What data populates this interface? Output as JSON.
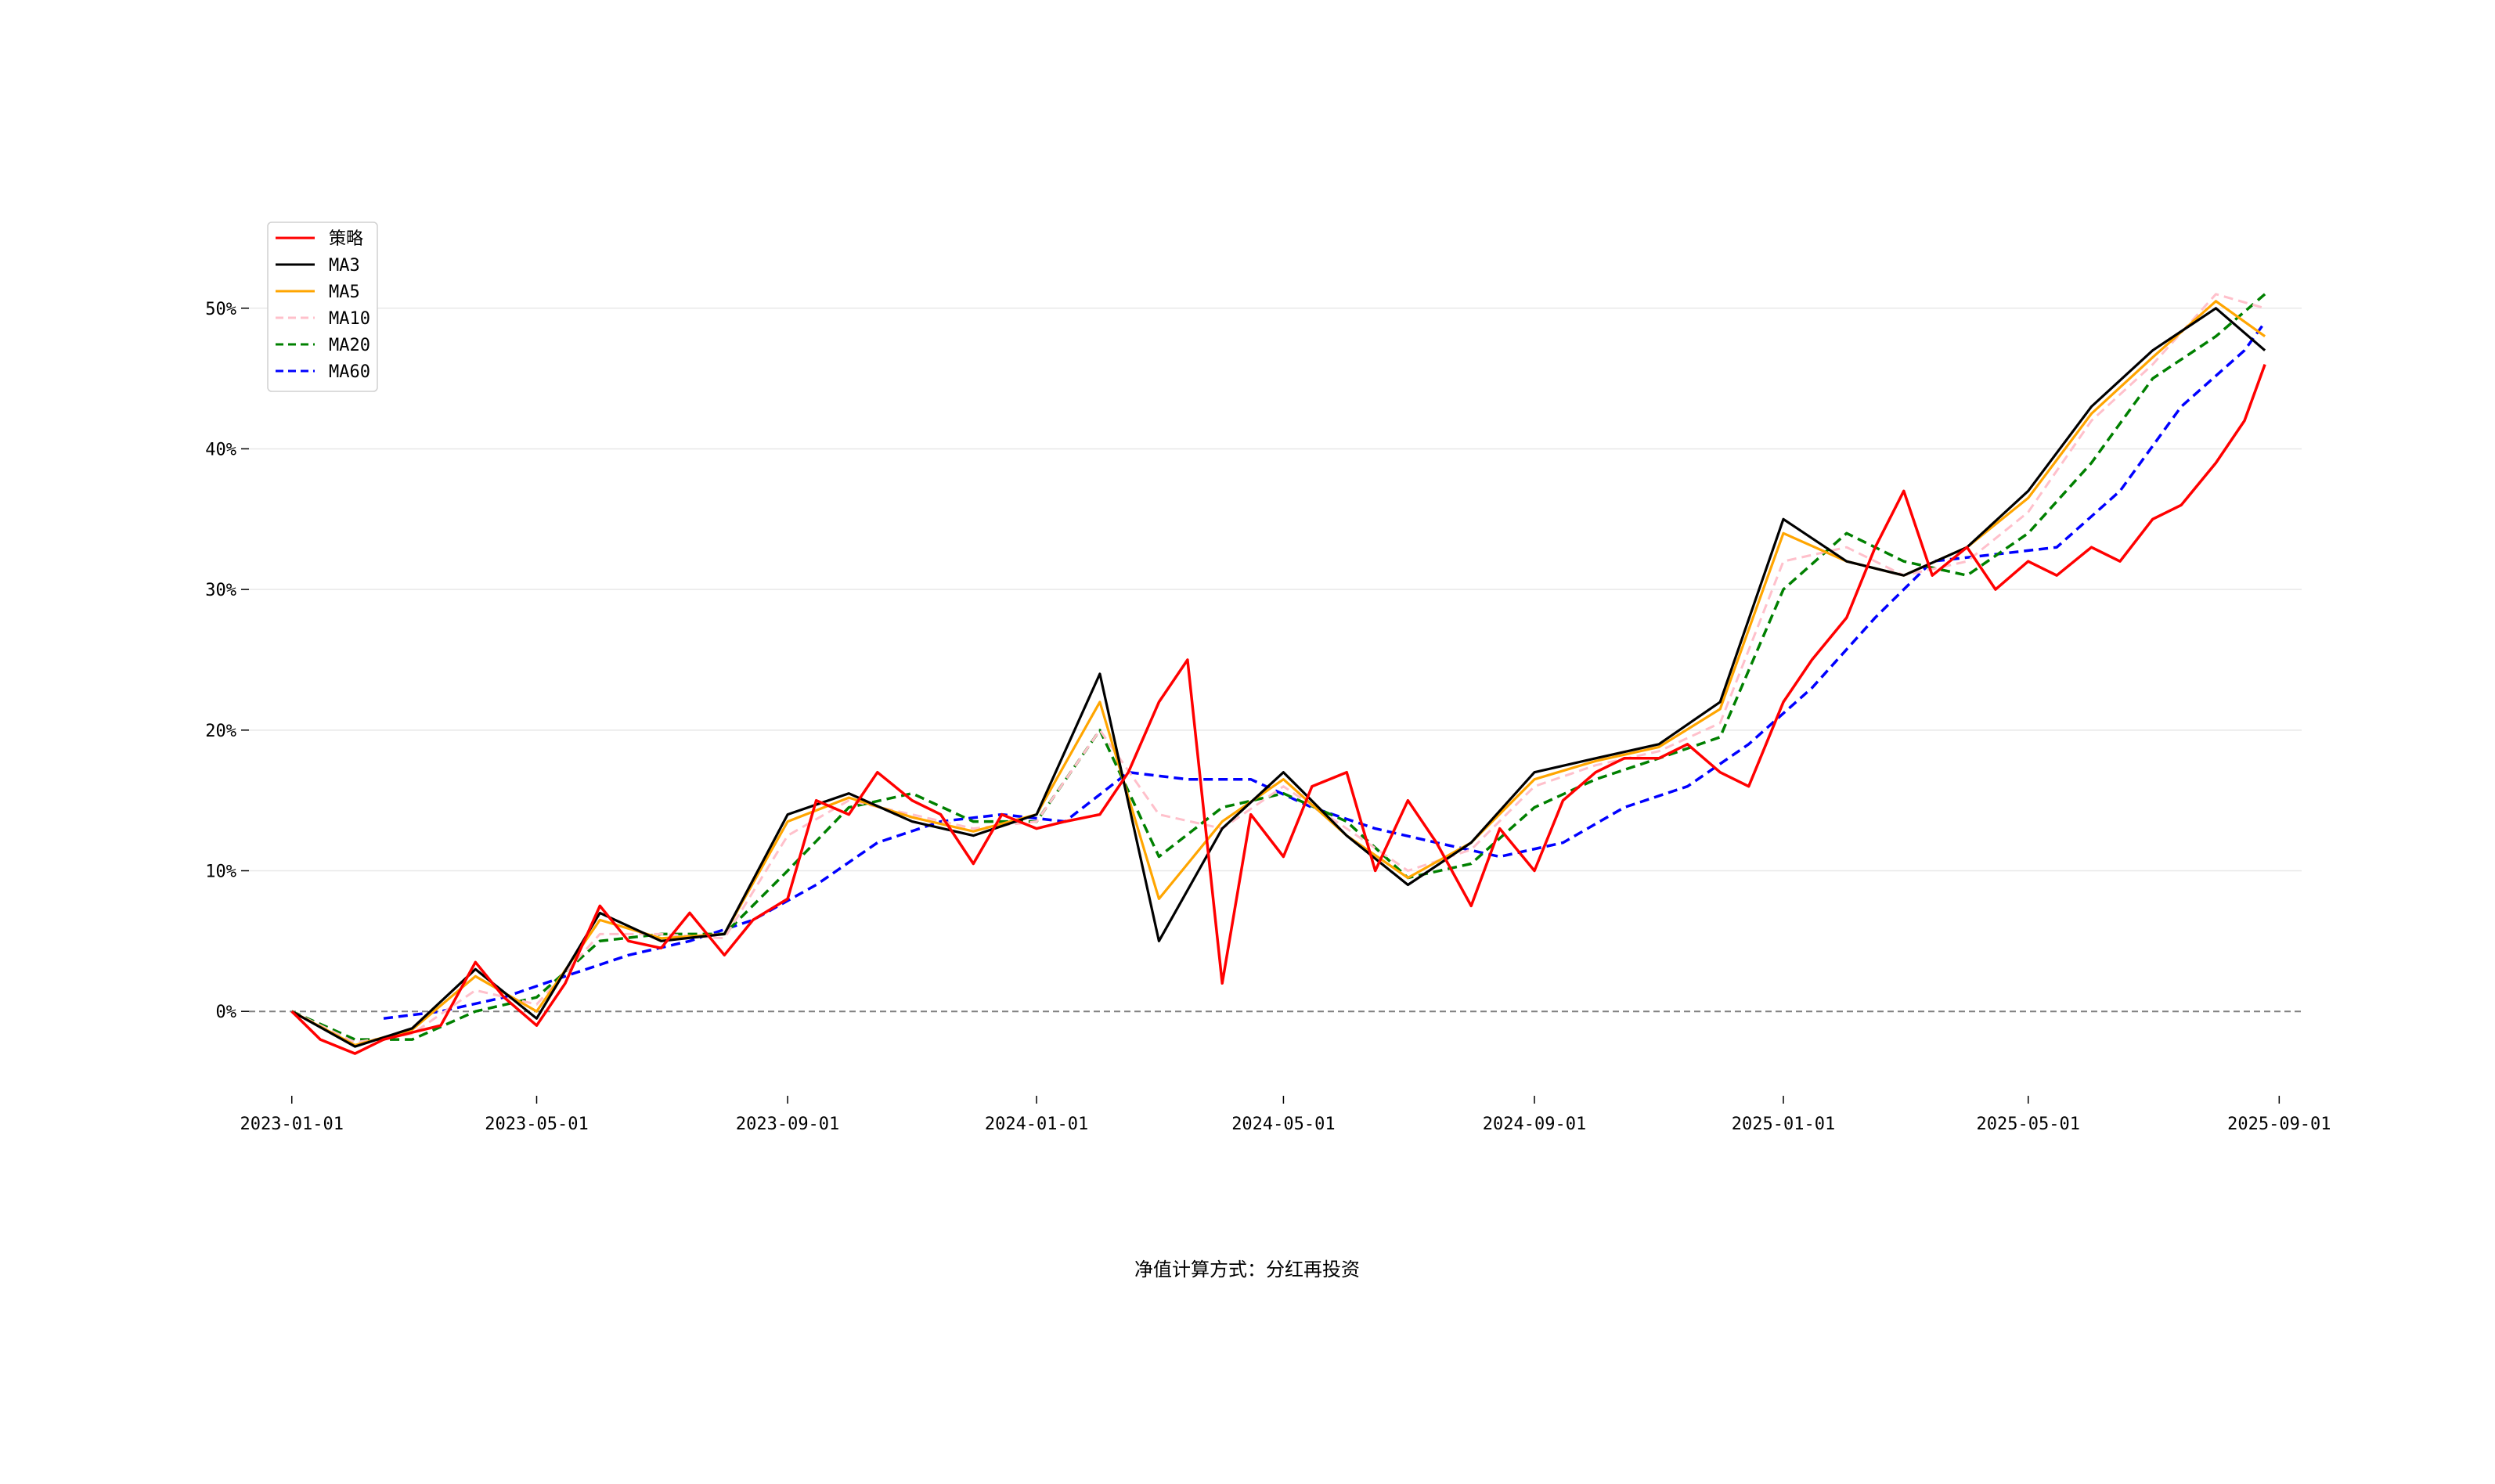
{
  "chart_data": {
    "type": "line",
    "title": "",
    "xlabel": "",
    "ylabel": "",
    "footnote": "净值计算方式：分红再投资",
    "x_ticks": [
      "2023-01-01",
      "2023-05-01",
      "2023-09-01",
      "2024-01-01",
      "2024-05-01",
      "2024-09-01",
      "2025-01-01",
      "2025-05-01",
      "2025-09-01"
    ],
    "y_ticks": [
      0,
      10,
      20,
      30,
      40,
      50
    ],
    "y_tick_labels": [
      "0%",
      "10%",
      "20%",
      "30%",
      "40%",
      "50%"
    ],
    "x_range": [
      "2022-12-11",
      "2025-09-12"
    ],
    "ylim": [
      -6,
      58
    ],
    "grid": "horizontal",
    "zero_line": true,
    "legend_position": "top-left",
    "colors": {
      "策略": "#ff0000",
      "MA3": "#000000",
      "MA5": "#ffa500",
      "MA10": "#ffc0cb",
      "MA20": "#008000",
      "MA60": "#0000ff",
      "grid": "#e8e8e8",
      "zero_line": "#808080"
    },
    "series": [
      {
        "name": "策略",
        "style": "solid",
        "color": "#ff0000",
        "x": [
          "2023-01-01",
          "2023-01-15",
          "2023-02-01",
          "2023-02-15",
          "2023-03-01",
          "2023-03-15",
          "2023-04-01",
          "2023-04-15",
          "2023-05-01",
          "2023-05-15",
          "2023-06-01",
          "2023-06-15",
          "2023-07-01",
          "2023-07-15",
          "2023-08-01",
          "2023-08-15",
          "2023-09-01",
          "2023-09-15",
          "2023-10-01",
          "2023-10-15",
          "2023-11-01",
          "2023-11-15",
          "2023-12-01",
          "2023-12-15",
          "2024-01-01",
          "2024-01-15",
          "2024-02-01",
          "2024-02-15",
          "2024-03-01",
          "2024-03-15",
          "2024-04-01",
          "2024-04-15",
          "2024-05-01",
          "2024-05-15",
          "2024-06-01",
          "2024-06-15",
          "2024-07-01",
          "2024-07-15",
          "2024-08-01",
          "2024-08-15",
          "2024-09-01",
          "2024-09-15",
          "2024-10-01",
          "2024-10-15",
          "2024-11-01",
          "2024-11-15",
          "2024-12-01",
          "2024-12-15",
          "2025-01-01",
          "2025-01-15",
          "2025-02-01",
          "2025-02-15",
          "2025-03-01",
          "2025-03-15",
          "2025-04-01",
          "2025-04-15",
          "2025-05-01",
          "2025-05-15",
          "2025-06-01",
          "2025-06-15",
          "2025-07-01",
          "2025-07-15",
          "2025-08-01",
          "2025-08-15",
          "2025-08-25"
        ],
        "values": [
          0,
          -2,
          -3,
          -2,
          -1.5,
          -1,
          3.5,
          1,
          -1,
          2,
          7.5,
          5,
          4.5,
          7,
          4,
          6.5,
          8,
          15,
          14,
          17,
          15,
          14,
          10.5,
          14,
          13,
          13.5,
          14,
          17,
          22,
          25,
          2,
          14,
          11,
          16,
          17,
          10,
          15,
          12,
          7.5,
          13,
          10,
          15,
          17,
          18,
          18,
          19,
          17,
          16,
          22,
          25,
          28,
          33,
          37,
          31,
          33,
          30,
          32,
          31,
          33,
          32,
          35,
          36,
          39,
          42,
          46
        ]
      },
      {
        "name": "MA3",
        "style": "solid",
        "color": "#000000",
        "x": [
          "2023-01-01",
          "2023-02-01",
          "2023-03-01",
          "2023-04-01",
          "2023-05-01",
          "2023-06-01",
          "2023-07-01",
          "2023-08-01",
          "2023-09-01",
          "2023-10-01",
          "2023-11-01",
          "2023-12-01",
          "2024-01-01",
          "2024-02-01",
          "2024-03-01",
          "2024-04-01",
          "2024-05-01",
          "2024-06-01",
          "2024-07-01",
          "2024-08-01",
          "2024-09-01",
          "2024-10-01",
          "2024-11-01",
          "2024-12-01",
          "2025-01-01",
          "2025-02-01",
          "2025-03-01",
          "2025-04-01",
          "2025-05-01",
          "2025-06-01",
          "2025-07-01",
          "2025-08-01",
          "2025-08-25"
        ],
        "values": [
          0,
          -2.5,
          -1.2,
          3,
          -0.5,
          7,
          5,
          5.5,
          14,
          15.5,
          13.5,
          12.5,
          14,
          24,
          5,
          13,
          17,
          12.5,
          9,
          12,
          17,
          18,
          19,
          22,
          35,
          32,
          31,
          33,
          37,
          43,
          47,
          50,
          47
        ]
      },
      {
        "name": "MA5",
        "style": "solid",
        "color": "#ffa500",
        "x": [
          "2023-01-01",
          "2023-02-01",
          "2023-03-01",
          "2023-04-01",
          "2023-05-01",
          "2023-06-01",
          "2023-07-01",
          "2023-08-01",
          "2023-09-01",
          "2023-10-01",
          "2023-11-01",
          "2023-12-01",
          "2024-01-01",
          "2024-02-01",
          "2024-03-01",
          "2024-04-01",
          "2024-05-01",
          "2024-06-01",
          "2024-07-01",
          "2024-08-01",
          "2024-09-01",
          "2024-10-01",
          "2024-11-01",
          "2024-12-01",
          "2025-01-01",
          "2025-02-01",
          "2025-03-01",
          "2025-04-01",
          "2025-05-01",
          "2025-06-01",
          "2025-07-01",
          "2025-08-01",
          "2025-08-25"
        ],
        "values": [
          0,
          -2.4,
          -1.3,
          2.5,
          0,
          6.5,
          5.2,
          5.5,
          13.5,
          15.2,
          13.8,
          12.8,
          14,
          22,
          8,
          13.5,
          16.5,
          12.5,
          9.5,
          12,
          16.5,
          17.8,
          18.8,
          21.5,
          34,
          32,
          31,
          33,
          36.5,
          42.5,
          46.5,
          50.5,
          48
        ]
      },
      {
        "name": "MA10",
        "style": "dashed",
        "color": "#ffc0cb",
        "x": [
          "2023-01-01",
          "2023-02-01",
          "2023-03-01",
          "2023-04-01",
          "2023-05-01",
          "2023-06-01",
          "2023-07-01",
          "2023-08-01",
          "2023-09-01",
          "2023-10-01",
          "2023-11-01",
          "2023-12-01",
          "2024-01-01",
          "2024-02-01",
          "2024-03-01",
          "2024-04-01",
          "2024-05-01",
          "2024-06-01",
          "2024-07-01",
          "2024-08-01",
          "2024-09-01",
          "2024-10-01",
          "2024-11-01",
          "2024-12-01",
          "2025-01-01",
          "2025-02-01",
          "2025-03-01",
          "2025-04-01",
          "2025-05-01",
          "2025-06-01",
          "2025-07-01",
          "2025-08-01",
          "2025-08-25"
        ],
        "values": [
          0,
          -2.2,
          -1.6,
          1.5,
          0.5,
          5.5,
          5.5,
          5.2,
          12.5,
          15,
          14,
          13,
          13.5,
          20,
          14,
          13,
          16,
          13,
          10,
          11.5,
          16,
          17.5,
          18.5,
          20.5,
          32,
          33,
          31,
          32,
          35.5,
          42,
          46,
          51,
          50
        ]
      },
      {
        "name": "MA20",
        "style": "dashed",
        "color": "#008000",
        "x": [
          "2023-01-01",
          "2023-02-01",
          "2023-03-01",
          "2023-04-01",
          "2023-05-01",
          "2023-06-01",
          "2023-07-01",
          "2023-08-01",
          "2023-09-01",
          "2023-10-01",
          "2023-11-01",
          "2023-12-01",
          "2024-01-01",
          "2024-02-01",
          "2024-03-01",
          "2024-04-01",
          "2024-05-01",
          "2024-06-01",
          "2024-07-01",
          "2024-08-01",
          "2024-09-01",
          "2024-10-01",
          "2024-11-01",
          "2024-12-01",
          "2025-01-01",
          "2025-02-01",
          "2025-03-01",
          "2025-04-01",
          "2025-05-01",
          "2025-06-01",
          "2025-07-01",
          "2025-08-01",
          "2025-08-25"
        ],
        "values": [
          0,
          -2,
          -2,
          0,
          1,
          5,
          5.5,
          5.5,
          10,
          14.5,
          15.5,
          13.5,
          13.5,
          20,
          11,
          14.5,
          15.5,
          13.5,
          9.5,
          10.5,
          14.5,
          16.5,
          18,
          19.5,
          30,
          34,
          32,
          31,
          34,
          39,
          45,
          48,
          51
        ]
      },
      {
        "name": "MA60",
        "style": "dashed",
        "color": "#0000ff",
        "x": [
          "2023-02-15",
          "2023-03-15",
          "2023-04-15",
          "2023-05-15",
          "2023-06-15",
          "2023-07-15",
          "2023-08-15",
          "2023-09-15",
          "2023-10-15",
          "2023-11-15",
          "2023-12-15",
          "2024-01-15",
          "2024-02-15",
          "2024-03-15",
          "2024-04-15",
          "2024-05-15",
          "2024-06-15",
          "2024-07-15",
          "2024-08-15",
          "2024-09-15",
          "2024-10-15",
          "2024-11-15",
          "2024-12-15",
          "2025-01-15",
          "2025-02-15",
          "2025-03-15",
          "2025-04-15",
          "2025-05-15",
          "2025-06-15",
          "2025-07-15",
          "2025-08-15",
          "2025-08-25"
        ],
        "values": [
          -0.5,
          0,
          1,
          2.5,
          4,
          5,
          6.5,
          9,
          12,
          13.5,
          14,
          13.5,
          17,
          16.5,
          16.5,
          14.5,
          13,
          12,
          11,
          12,
          14.5,
          16,
          19,
          23,
          28,
          32,
          32.5,
          33,
          37,
          43,
          47,
          49
        ]
      }
    ]
  }
}
